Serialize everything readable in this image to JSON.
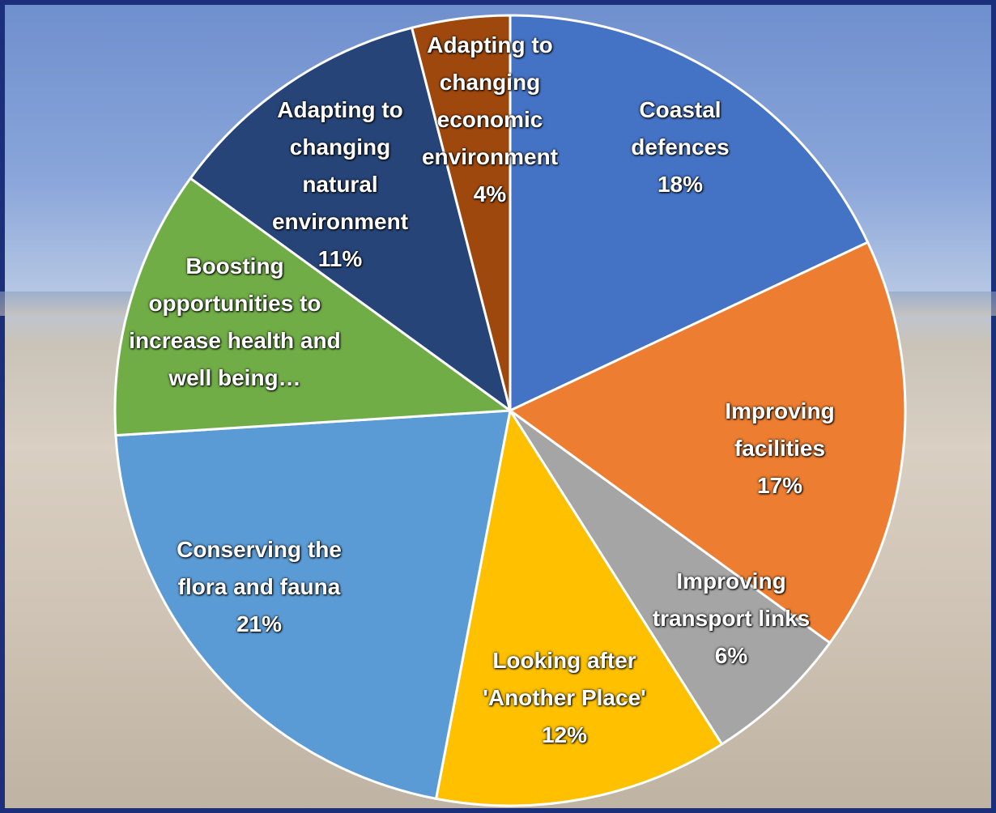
{
  "chart_data": {
    "type": "pie",
    "categories": [
      "Coastal defences",
      "Improving facilities",
      "Improving transport links",
      "Looking after 'Another Place'",
      "Conserving the flora and fauna",
      "Boosting opportunities to increase health and well being…",
      "Adapting to changing natural environment",
      "Adapting to changing economic environment"
    ],
    "values": [
      18,
      17,
      6,
      12,
      21,
      11,
      11,
      4
    ],
    "value_labels": [
      "18%",
      "17%",
      "6%",
      "12%",
      "21%",
      null,
      "11%",
      "4%"
    ],
    "colors": [
      "#4472c4",
      "#ed7d31",
      "#a5a5a5",
      "#ffc000",
      "#5b9bd5",
      "#70ad47",
      "#264478",
      "#9e480e"
    ]
  }
}
